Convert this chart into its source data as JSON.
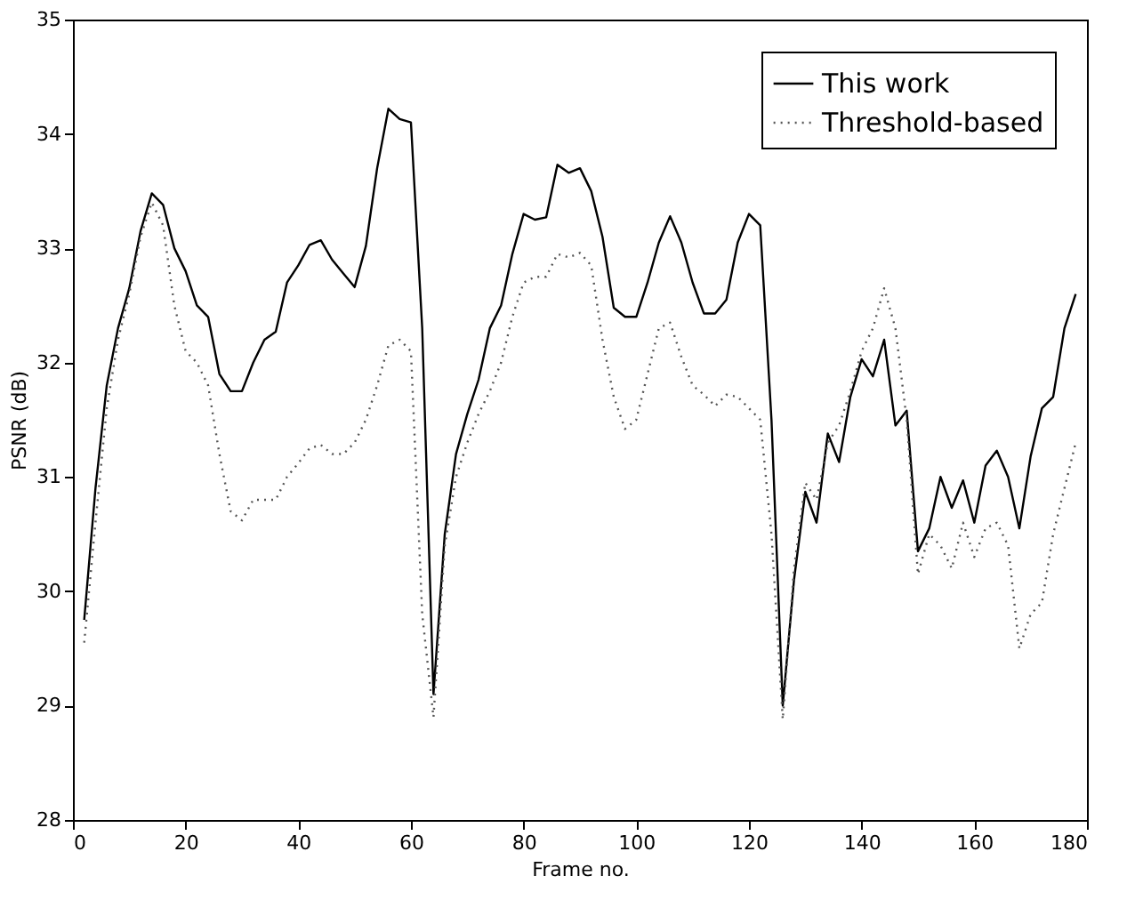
{
  "chart_data": {
    "type": "line",
    "xlabel": "Frame no.",
    "ylabel": "PSNR (dB)",
    "x": [
      2,
      4,
      6,
      8,
      10,
      12,
      14,
      16,
      18,
      20,
      22,
      24,
      26,
      28,
      30,
      32,
      34,
      36,
      38,
      40,
      42,
      44,
      46,
      48,
      50,
      52,
      54,
      56,
      58,
      60,
      62,
      64,
      66,
      68,
      70,
      72,
      74,
      76,
      78,
      80,
      82,
      84,
      86,
      88,
      90,
      92,
      94,
      96,
      98,
      100,
      102,
      104,
      106,
      108,
      110,
      112,
      114,
      116,
      118,
      120,
      122,
      124,
      126,
      128,
      130,
      132,
      134,
      136,
      138,
      140,
      142,
      144,
      146,
      148,
      150,
      152,
      154,
      156,
      158,
      160,
      162,
      164,
      166,
      168,
      170,
      172,
      174,
      176,
      178
    ],
    "series": [
      {
        "name": "This work",
        "color": "#000000",
        "line_style": "solid",
        "values": [
          29.75,
          30.9,
          31.8,
          32.3,
          32.65,
          33.15,
          33.48,
          33.38,
          33.0,
          32.8,
          32.5,
          32.4,
          31.9,
          31.75,
          31.75,
          32.0,
          32.2,
          32.27,
          32.7,
          32.85,
          33.03,
          33.07,
          32.9,
          32.78,
          32.66,
          33.02,
          33.7,
          34.22,
          34.13,
          34.1,
          32.3,
          29.1,
          30.5,
          31.2,
          31.55,
          31.85,
          32.3,
          32.5,
          32.95,
          33.3,
          33.25,
          33.27,
          33.73,
          33.66,
          33.7,
          33.5,
          33.1,
          32.48,
          32.4,
          32.4,
          32.7,
          33.05,
          33.28,
          33.05,
          32.7,
          32.43,
          32.43,
          32.55,
          33.05,
          33.3,
          33.2,
          31.5,
          29.0,
          30.1,
          30.87,
          30.6,
          31.38,
          31.13,
          31.7,
          32.03,
          31.88,
          32.2,
          31.45,
          31.58,
          30.35,
          30.55,
          31.0,
          30.73,
          30.97,
          30.6,
          31.1,
          31.23,
          31.0,
          30.55,
          31.18,
          31.6,
          31.7,
          32.3,
          32.6
        ]
      },
      {
        "name": "Threshold-based",
        "color": "#555555",
        "line_style": "dotted",
        "values": [
          29.55,
          30.6,
          31.6,
          32.2,
          32.6,
          33.1,
          33.4,
          33.2,
          32.5,
          32.1,
          32.0,
          31.8,
          31.2,
          30.7,
          30.62,
          30.8,
          30.8,
          30.8,
          31.0,
          31.12,
          31.25,
          31.28,
          31.2,
          31.2,
          31.3,
          31.5,
          31.8,
          32.15,
          32.2,
          32.1,
          29.8,
          28.9,
          30.4,
          31.0,
          31.3,
          31.55,
          31.75,
          32.0,
          32.4,
          32.7,
          32.75,
          32.75,
          32.95,
          32.92,
          32.96,
          32.85,
          32.2,
          31.7,
          31.42,
          31.5,
          31.9,
          32.3,
          32.35,
          32.05,
          31.8,
          31.72,
          31.62,
          31.72,
          31.7,
          31.6,
          31.5,
          30.5,
          28.88,
          30.2,
          30.95,
          30.8,
          31.3,
          31.45,
          31.75,
          32.1,
          32.3,
          32.65,
          32.3,
          31.5,
          30.15,
          30.5,
          30.4,
          30.2,
          30.6,
          30.3,
          30.55,
          30.6,
          30.4,
          29.5,
          29.8,
          29.9,
          30.5,
          30.9,
          31.3
        ]
      }
    ],
    "xlim": [
      0,
      180
    ],
    "xticks": [
      0,
      20,
      40,
      60,
      80,
      100,
      120,
      140,
      160,
      180
    ],
    "ylim": [
      28,
      35
    ],
    "yticks": [
      28,
      29,
      30,
      31,
      32,
      33,
      34,
      35
    ],
    "grid": false,
    "legend": "top right",
    "marker": "none"
  }
}
